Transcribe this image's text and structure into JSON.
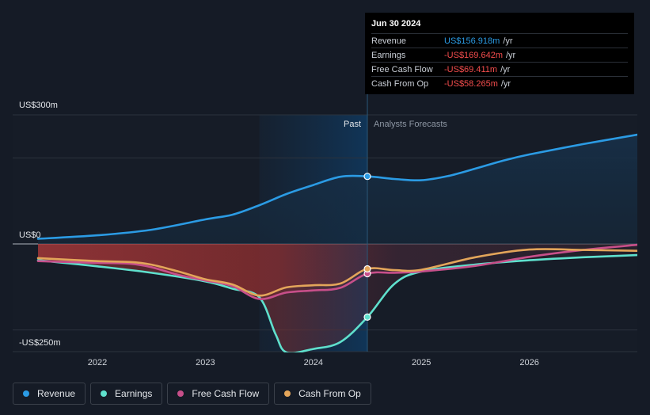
{
  "tooltip": {
    "date": "Jun 30 2024",
    "rows": [
      {
        "label": "Revenue",
        "value": "US$156.918m",
        "unit": "/yr",
        "color": "#2b9be4"
      },
      {
        "label": "Earnings",
        "value": "-US$169.642m",
        "unit": "/yr",
        "color": "#f44d4d"
      },
      {
        "label": "Free Cash Flow",
        "value": "-US$69.411m",
        "unit": "/yr",
        "color": "#f44d4d"
      },
      {
        "label": "Cash From Op",
        "value": "-US$58.265m",
        "unit": "/yr",
        "color": "#f44d4d"
      }
    ]
  },
  "legend": [
    {
      "label": "Revenue",
      "color": "#2b9be4"
    },
    {
      "label": "Earnings",
      "color": "#5fe0cd"
    },
    {
      "label": "Free Cash Flow",
      "color": "#c74f8a"
    },
    {
      "label": "Cash From Op",
      "color": "#e3a55a"
    }
  ],
  "chart_data": {
    "type": "line",
    "x_range": [
      2021.45,
      2027.0
    ],
    "ylim": [
      -250,
      300
    ],
    "y_labels": [
      {
        "label": "US$300m",
        "value": 300
      },
      {
        "label": "US$0",
        "value": 0
      },
      {
        "label": "-US$250m",
        "value": -250
      }
    ],
    "x_ticks": [
      {
        "label": "2022",
        "value": 2022
      },
      {
        "label": "2023",
        "value": 2023
      },
      {
        "label": "2024",
        "value": 2024
      },
      {
        "label": "2025",
        "value": 2025
      },
      {
        "label": "2026",
        "value": 2026
      }
    ],
    "past_label": "Past",
    "forecast_label": "Analysts Forecasts",
    "past_range": [
      2023.5,
      2024.5
    ],
    "current_x": 2024.5,
    "series": [
      {
        "name": "Revenue",
        "color": "#2b9be4",
        "points": [
          [
            2021.45,
            12
          ],
          [
            2022,
            20
          ],
          [
            2022.5,
            33
          ],
          [
            2023,
            57
          ],
          [
            2023.25,
            68
          ],
          [
            2023.5,
            90
          ],
          [
            2023.75,
            116
          ],
          [
            2024,
            137
          ],
          [
            2024.25,
            156
          ],
          [
            2024.5,
            157
          ],
          [
            2024.75,
            151
          ],
          [
            2025,
            148
          ],
          [
            2025.25,
            158
          ],
          [
            2025.5,
            175
          ],
          [
            2025.75,
            193
          ],
          [
            2026,
            208
          ],
          [
            2026.5,
            232
          ],
          [
            2027,
            254
          ]
        ]
      },
      {
        "name": "Earnings",
        "color": "#5fe0cd",
        "points": [
          [
            2021.45,
            -38
          ],
          [
            2022,
            -52
          ],
          [
            2022.5,
            -67
          ],
          [
            2023,
            -87
          ],
          [
            2023.25,
            -104
          ],
          [
            2023.5,
            -124
          ],
          [
            2023.65,
            -210
          ],
          [
            2023.75,
            -252
          ],
          [
            2024,
            -244
          ],
          [
            2024.25,
            -228
          ],
          [
            2024.5,
            -170
          ],
          [
            2024.75,
            -93
          ],
          [
            2025,
            -64
          ],
          [
            2025.5,
            -48
          ],
          [
            2026,
            -38
          ],
          [
            2026.5,
            -31
          ],
          [
            2027,
            -26
          ]
        ]
      },
      {
        "name": "Free Cash Flow",
        "color": "#c74f8a",
        "points": [
          [
            2021.45,
            -40
          ],
          [
            2022,
            -44
          ],
          [
            2022.3,
            -46
          ],
          [
            2022.5,
            -54
          ],
          [
            2022.75,
            -72
          ],
          [
            2023,
            -85
          ],
          [
            2023.25,
            -98
          ],
          [
            2023.5,
            -128
          ],
          [
            2023.75,
            -113
          ],
          [
            2024,
            -108
          ],
          [
            2024.25,
            -102
          ],
          [
            2024.5,
            -69
          ],
          [
            2024.75,
            -67
          ],
          [
            2025,
            -64
          ],
          [
            2025.5,
            -51
          ],
          [
            2026,
            -30
          ],
          [
            2026.5,
            -14
          ],
          [
            2027,
            -2
          ]
        ]
      },
      {
        "name": "Cash From Op",
        "color": "#e3a55a",
        "points": [
          [
            2021.45,
            -33
          ],
          [
            2022,
            -40
          ],
          [
            2022.3,
            -42
          ],
          [
            2022.5,
            -48
          ],
          [
            2022.75,
            -64
          ],
          [
            2023,
            -82
          ],
          [
            2023.25,
            -94
          ],
          [
            2023.5,
            -120
          ],
          [
            2023.75,
            -101
          ],
          [
            2024,
            -96
          ],
          [
            2024.25,
            -92
          ],
          [
            2024.5,
            -58
          ],
          [
            2024.75,
            -61
          ],
          [
            2025,
            -60
          ],
          [
            2025.5,
            -31
          ],
          [
            2026,
            -13
          ],
          [
            2026.5,
            -14
          ],
          [
            2027,
            -16
          ]
        ]
      }
    ]
  }
}
